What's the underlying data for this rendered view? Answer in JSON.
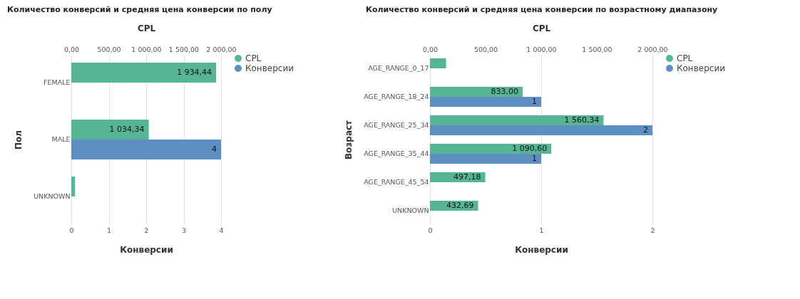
{
  "chart_data": [
    {
      "type": "bar",
      "orientation": "horizontal",
      "title": "Количество конверсий и средняя цена конверсии по полу",
      "xlabel": "Конверсии",
      "x2label": "CPL",
      "ylabel": "Пол",
      "categories": [
        "FEMALE",
        "MALE",
        "UNKNOWN"
      ],
      "series": [
        {
          "name": "CPL",
          "color": "#55b596",
          "axis": "x2",
          "values": [
            1934.44,
            1034.34,
            50
          ],
          "value_labels": [
            "1 934,44",
            "1 034,34",
            null
          ]
        },
        {
          "name": "Конверсии",
          "color": "#5e8fc2",
          "values": [
            null,
            4,
            null
          ],
          "value_labels": [
            null,
            "4",
            null
          ]
        }
      ],
      "xlim": [
        0,
        4
      ],
      "xticks": [
        0,
        1,
        2,
        3,
        4
      ],
      "x2lim": [
        0,
        2000
      ],
      "x2ticks": [
        {
          "value": 0,
          "label": "0,00"
        },
        {
          "value": 500,
          "label": "500,00"
        },
        {
          "value": 1000,
          "label": "1 000,00"
        },
        {
          "value": 1500,
          "label": "1 500,00"
        },
        {
          "value": 2000,
          "label": "2 000,00"
        }
      ],
      "grid": "x",
      "legend": "top right"
    },
    {
      "type": "bar",
      "orientation": "horizontal",
      "title": "Количество конверсий и средняя цена конверсии по возрастному диапазону",
      "xlabel": "Конверсии",
      "x2label": "CPL",
      "ylabel": "Возраст",
      "categories": [
        "AGE_RANGE_0_17",
        "AGE_RANGE_18_24",
        "AGE_RANGE_25_34",
        "AGE_RANGE_35_44",
        "AGE_RANGE_45_54",
        "UNKNOWN"
      ],
      "series": [
        {
          "name": "CPL",
          "color": "#55b596",
          "axis": "x2",
          "values": [
            145,
            833.0,
            1560.34,
            1090.6,
            497.18,
            432.69
          ],
          "value_labels": [
            null,
            "833,00",
            "1 560,34",
            "1 090,60",
            "497,18",
            "432,69"
          ]
        },
        {
          "name": "Конверсии",
          "color": "#5e8fc2",
          "values": [
            null,
            1,
            2,
            1,
            null,
            null
          ],
          "value_labels": [
            null,
            "1",
            "2",
            "1",
            null,
            null
          ]
        }
      ],
      "xlim": [
        0,
        2
      ],
      "xticks": [
        0,
        1,
        2
      ],
      "x2lim": [
        0,
        2000
      ],
      "x2ticks": [
        {
          "value": 0,
          "label": "0,00"
        },
        {
          "value": 500,
          "label": "500,00"
        },
        {
          "value": 1000,
          "label": "1 000,00"
        },
        {
          "value": 1500,
          "label": "1 500,00"
        },
        {
          "value": 2000,
          "label": "2 000,00"
        }
      ],
      "grid": "x",
      "legend": "top right"
    }
  ]
}
